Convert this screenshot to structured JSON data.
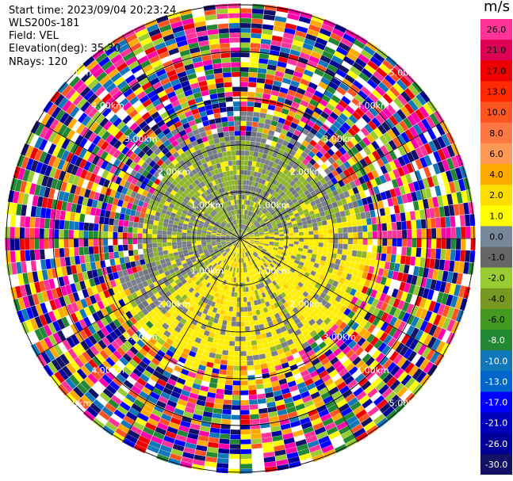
{
  "header": {
    "start_time": "Start time: 2023/09/04 20:23:24",
    "instrument": "WLS200s-181",
    "field": "Field: VEL",
    "elevation": "Elevation(deg): 35.30",
    "nrays": "NRays: 120"
  },
  "chart_data": {
    "type": "heatmap",
    "subtype": "polar PPI (plan position indicator) lidar scan",
    "field": "VEL",
    "units": "m/s",
    "n_rays": 120,
    "elevation_deg": 35.3,
    "ring_labels": [
      "1.00km",
      "2.00km",
      "3.00km",
      "4.00km",
      "5.00km"
    ],
    "colorbar": {
      "label": "m/s",
      "ticks": [
        "26.0",
        "21.0",
        "17.0",
        "13.0",
        "10.0",
        "8.0",
        "6.0",
        "4.0",
        "2.0",
        "1.0",
        "0.0",
        "-1.0",
        "-2.0",
        "-4.0",
        "-6.0",
        "-8.0",
        "-10.0",
        "-13.0",
        "-17.0",
        "-21.0",
        "-26.0",
        "-30.0"
      ],
      "colors": [
        "#ff3399",
        "#dd0055",
        "#ee0000",
        "#ff2a00",
        "#ff5522",
        "#ff7744",
        "#ff9955",
        "#ffaa00",
        "#ffdd00",
        "#ffff00",
        "#778899",
        "#666666",
        "#99cc33",
        "#779922",
        "#449922",
        "#228833",
        "#1177bb",
        "#0066cc",
        "#0000ff",
        "#0000bb",
        "#000099",
        "#111166"
      ]
    },
    "pattern_description_colors": {
      "near_range_green": "#8fb52b",
      "near_range_gray": "#7a7f8a",
      "near_range_yellow": "#ffee00",
      "far_range_noise": [
        "#ff3399",
        "#ee0000",
        "#ffaa00",
        "#ffff00",
        "#0000ff",
        "#000099",
        "#111166",
        "#228833",
        "#99cc33",
        "#ff5522",
        "#1177bb",
        "#ff00aa",
        "#ffffff"
      ]
    }
  }
}
